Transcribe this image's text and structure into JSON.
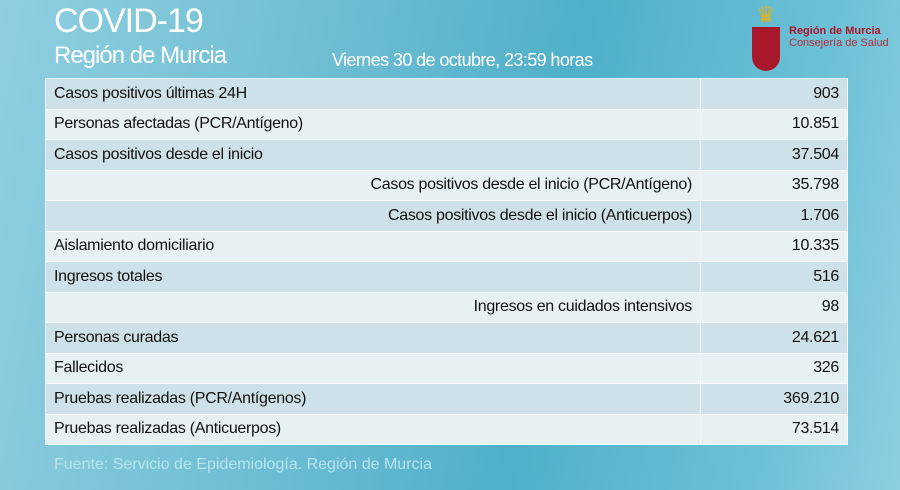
{
  "header": {
    "title": "COVID-19",
    "subtitle": "Región de Murcia",
    "date": "Viernes 30 de octubre, 23:59 horas"
  },
  "logo": {
    "line1": "Región de Murcia",
    "line2": "Consejería de Salud",
    "icon": "coat-of-arms-icon"
  },
  "rows": [
    {
      "label": "Casos positivos últimas 24H",
      "value": "903"
    },
    {
      "label": "Personas afectadas (PCR/Antígeno)",
      "value": "10.851"
    },
    {
      "label": "Casos positivos desde el inicio",
      "value": "37.504"
    },
    {
      "label": "Casos positivos desde el inicio (PCR/Antígeno)",
      "value": "35.798"
    },
    {
      "label": "Casos positivos desde el inicio (Anticuerpos)",
      "value": "1.706"
    },
    {
      "label": "Aislamiento domiciliario",
      "value": "10.335"
    },
    {
      "label": "Ingresos totales",
      "value": "516"
    },
    {
      "label": "Ingresos en cuidados intensivos",
      "value": "98"
    },
    {
      "label": "Personas curadas",
      "value": "24.621"
    },
    {
      "label": "Fallecidos",
      "value": "326"
    },
    {
      "label": "Pruebas realizadas (PCR/Antígenos)",
      "value": "369.210"
    },
    {
      "label": "Pruebas realizadas (Anticuerpos)",
      "value": "73.514"
    }
  ],
  "footer": {
    "source": "Fuente: Servicio de Epidemiología.  Región de Murcia"
  }
}
